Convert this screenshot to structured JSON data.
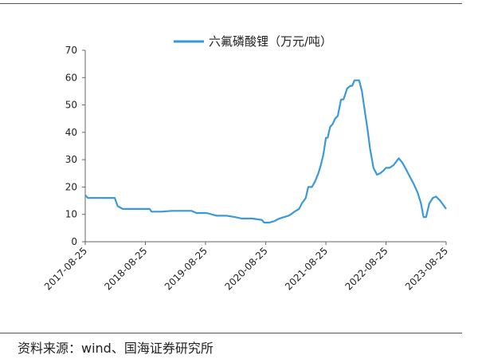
{
  "chart_data": {
    "type": "line",
    "title": "",
    "xlabel": "",
    "ylabel": "",
    "ylim": [
      0,
      70
    ],
    "y_ticks": [
      0,
      10,
      20,
      30,
      40,
      50,
      60,
      70
    ],
    "x_tick_labels": [
      "2017-08-25",
      "2018-08-25",
      "2019-08-25",
      "2020-08-25",
      "2021-08-25",
      "2022-08-25",
      "2023-08-25"
    ],
    "grid": false,
    "legend": "top-center",
    "series": [
      {
        "name": "六氟磷酸锂（万元/吨）",
        "color": "#3a9ad9",
        "x": [
          "2017-08-25",
          "2017-09-10",
          "2018-01-01",
          "2018-02-20",
          "2018-03-10",
          "2018-04-10",
          "2018-06-01",
          "2018-09-20",
          "2018-10-01",
          "2018-12-01",
          "2019-02-01",
          "2019-04-01",
          "2019-06-01",
          "2019-07-01",
          "2019-09-01",
          "2019-11-01",
          "2020-01-01",
          "2020-02-20",
          "2020-04-01",
          "2020-06-01",
          "2020-08-01",
          "2020-08-15",
          "2020-09-15",
          "2020-10-15",
          "2020-11-15",
          "2020-12-15",
          "2021-01-10",
          "2021-01-25",
          "2021-02-15",
          "2021-03-15",
          "2021-04-01",
          "2021-04-25",
          "2021-05-10",
          "2021-06-01",
          "2021-06-20",
          "2021-07-10",
          "2021-07-25",
          "2021-08-10",
          "2021-08-25",
          "2021-09-05",
          "2021-09-20",
          "2021-10-05",
          "2021-10-20",
          "2021-11-05",
          "2021-11-25",
          "2021-12-10",
          "2022-01-01",
          "2022-01-10",
          "2022-01-20",
          "2022-02-01",
          "2022-02-15",
          "2022-03-01",
          "2022-03-15",
          "2022-04-01",
          "2022-04-20",
          "2022-05-05",
          "2022-05-20",
          "2022-06-10",
          "2022-07-01",
          "2022-07-20",
          "2022-08-10",
          "2022-08-25",
          "2022-09-15",
          "2022-10-10",
          "2022-11-10",
          "2022-12-01",
          "2022-12-20",
          "2023-01-15",
          "2023-02-10",
          "2023-03-05",
          "2023-03-25",
          "2023-04-10",
          "2023-04-25",
          "2023-05-15",
          "2023-06-05",
          "2023-06-25",
          "2023-07-20",
          "2023-08-25"
        ],
        "values": [
          17,
          16,
          16,
          16,
          13,
          12,
          12,
          12,
          11,
          11,
          11.3,
          11.3,
          11.3,
          10.5,
          10.5,
          9.5,
          9.5,
          9,
          8.5,
          8.5,
          8,
          7,
          7,
          7.5,
          8.5,
          9,
          9.5,
          10,
          11,
          12,
          14,
          16,
          20,
          20,
          22,
          25,
          28,
          32,
          38,
          38,
          42,
          43,
          45,
          46,
          52,
          52,
          56,
          56.5,
          57,
          57,
          59,
          59,
          59,
          55,
          47,
          41,
          34,
          27,
          24.5,
          25,
          26,
          27,
          27,
          28,
          30.5,
          29,
          27,
          24,
          21,
          18,
          14,
          9,
          9,
          14,
          16,
          16.5,
          15,
          12
        ]
      }
    ]
  },
  "source": {
    "text": "资料来源：wind、国海证券研究所"
  }
}
